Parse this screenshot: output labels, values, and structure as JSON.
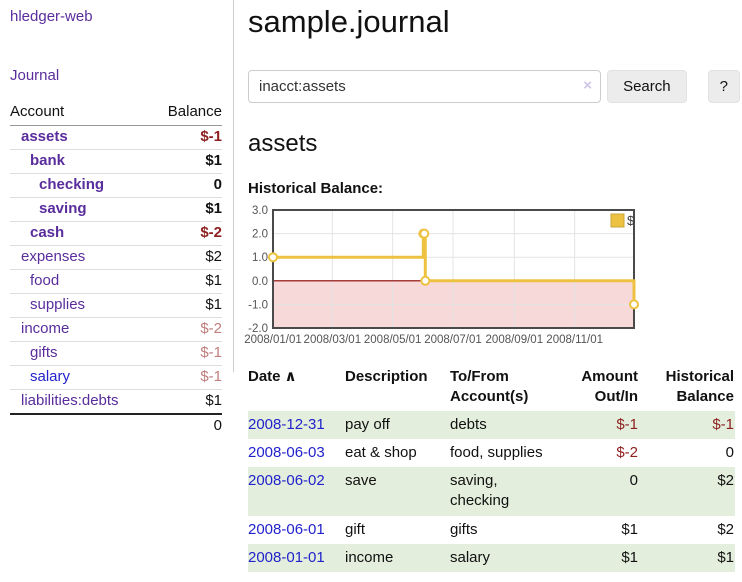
{
  "sidebar": {
    "app_title": "hledger-web",
    "journal_link": "Journal",
    "accounts_table": {
      "headers": [
        "Account",
        "Balance"
      ],
      "rows": [
        {
          "name": "assets",
          "depth": 0,
          "balance": "$-1",
          "bold": true,
          "balance_style": "negative-strong",
          "link_style": "purple"
        },
        {
          "name": "bank",
          "depth": 1,
          "balance": "$1",
          "bold": true,
          "balance_style": "normal",
          "link_style": "purple"
        },
        {
          "name": "checking",
          "depth": 2,
          "balance": "0",
          "bold": true,
          "balance_style": "normal",
          "link_style": "purple"
        },
        {
          "name": "saving",
          "depth": 2,
          "balance": "$1",
          "bold": true,
          "balance_style": "normal",
          "link_style": "purple"
        },
        {
          "name": "cash",
          "depth": 1,
          "balance": "$-2",
          "bold": true,
          "balance_style": "negative-strong",
          "link_style": "purple"
        },
        {
          "name": "expenses",
          "depth": 0,
          "balance": "$2",
          "bold": false,
          "balance_style": "normal",
          "link_style": "purple"
        },
        {
          "name": "food",
          "depth": 1,
          "balance": "$1",
          "bold": false,
          "balance_style": "normal",
          "link_style": "purple"
        },
        {
          "name": "supplies",
          "depth": 1,
          "balance": "$1",
          "bold": false,
          "balance_style": "normal",
          "link_style": "purple"
        },
        {
          "name": "income",
          "depth": 0,
          "balance": "$-2",
          "bold": false,
          "balance_style": "negative-soft",
          "link_style": "purple"
        },
        {
          "name": "gifts",
          "depth": 1,
          "balance": "$-1",
          "bold": false,
          "balance_style": "negative-soft",
          "link_style": "purple"
        },
        {
          "name": "salary",
          "depth": 1,
          "balance": "$-1",
          "bold": false,
          "balance_style": "negative-soft",
          "link_style": "blue"
        },
        {
          "name": "liabilities:debts",
          "depth": 0,
          "balance": "$1",
          "bold": false,
          "balance_style": "normal",
          "link_style": "purple"
        }
      ],
      "total": "0"
    }
  },
  "header": {
    "title": "sample.journal"
  },
  "search": {
    "value": "inacct:assets",
    "clear_icon": "×",
    "button_label": "Search",
    "help_label": "?"
  },
  "account_page": {
    "title": "assets",
    "chart_label": "Historical Balance:"
  },
  "chart_data": {
    "type": "line",
    "style": "step",
    "title": "Historical Balance",
    "series": [
      {
        "name": "$",
        "color": "#edc240",
        "points": [
          [
            "2008-01-01",
            1
          ],
          [
            "2008-06-01",
            2
          ],
          [
            "2008-06-02",
            2
          ],
          [
            "2008-06-03",
            0
          ],
          [
            "2008-12-31",
            -1
          ]
        ]
      }
    ],
    "x_range": [
      "2008-01-01",
      "2008-12-31"
    ],
    "ylim": [
      -2,
      3
    ],
    "y_ticks": [
      3,
      2,
      1,
      0,
      -1,
      -2
    ],
    "y_tick_labels": [
      "3.0",
      "2.0",
      "1.0",
      "0.0",
      "-1.0",
      "-2.0"
    ],
    "x_ticks": [
      "2008/01/01",
      "2008/03/01",
      "2008/05/01",
      "2008/07/01",
      "2008/09/01",
      "2008/11/01"
    ],
    "grid": true,
    "legend": {
      "label": "$",
      "position": "top-right"
    },
    "negative_region_color": "#f8d9d9",
    "zero_line_color": "#8b0000",
    "grid_color": "#e3e3e3",
    "border_color": "#4a4a4a",
    "tick_color": "#545454"
  },
  "register_table": {
    "headers": {
      "date": "Date",
      "sort_icon": "∧",
      "description": "Description",
      "accounts": "To/From Account(s)",
      "amount": "Amount Out/In",
      "balance": "Historical Balance"
    },
    "rows": [
      {
        "date": "2008-12-31",
        "description": "pay off",
        "accounts": "debts",
        "amount": "$-1",
        "amount_negative": true,
        "balance": "$-1",
        "balance_negative": true,
        "highlighted": true
      },
      {
        "date": "2008-06-03",
        "description": "eat & shop",
        "accounts": "food, supplies",
        "amount": "$-2",
        "amount_negative": true,
        "balance": "0",
        "balance_negative": false,
        "highlighted": false
      },
      {
        "date": "2008-06-02",
        "description": "save",
        "accounts": "saving, checking",
        "amount": "0",
        "amount_negative": false,
        "balance": "$2",
        "balance_negative": false,
        "highlighted": true
      },
      {
        "date": "2008-06-01",
        "description": "gift",
        "accounts": "gifts",
        "amount": "$1",
        "amount_negative": false,
        "balance": "$2",
        "balance_negative": false,
        "highlighted": false
      },
      {
        "date": "2008-01-01",
        "description": "income",
        "accounts": "salary",
        "amount": "$1",
        "amount_negative": false,
        "balance": "$1",
        "balance_negative": false,
        "highlighted": true
      }
    ]
  },
  "colors": {
    "purple_link": "#5a2d9c",
    "blue_link": "#2222cc",
    "negative_strong": "#8e1f1f",
    "negative_soft": "#bf7d7d",
    "row_highlight_green": "#e3eedc",
    "chart_line_yellow": "#edc240",
    "chart_negative_pink": "#f8d9d9",
    "chart_zero_line": "#8b0000"
  }
}
